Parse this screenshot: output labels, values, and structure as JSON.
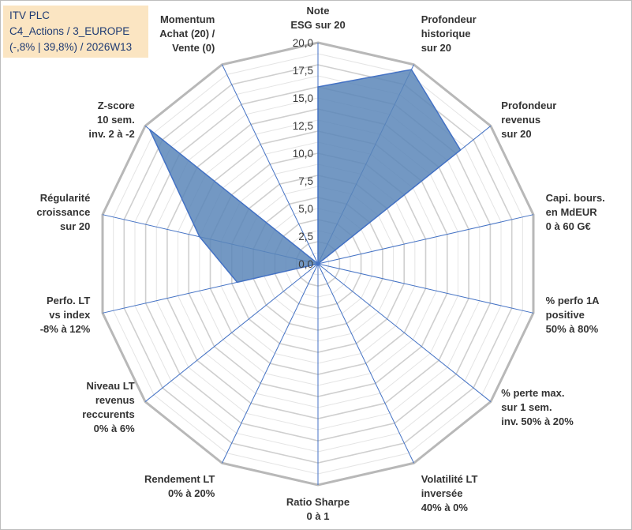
{
  "title_box": {
    "line1": "ITV PLC",
    "line2": "C4_Actions / 3_EUROPE",
    "line3": "(-,8% | 39,8%) / 2026W13"
  },
  "colors": {
    "fill": "#5b86b8",
    "stroke": "#4472c4",
    "grid": "#c8c8c8",
    "spoke": "#4472c4",
    "title_bg": "#fbe5c2",
    "title_text": "#1f3b73"
  },
  "chart_data": {
    "type": "radar",
    "title": "",
    "rmin": 0,
    "rmax": 20,
    "ticks": [
      "0,0",
      "2,5",
      "5,0",
      "7,5",
      "10,0",
      "12,5",
      "15,0",
      "17,5",
      "20,0"
    ],
    "axes": [
      {
        "label": [
          "Note",
          "ESG sur 20"
        ],
        "value": 16
      },
      {
        "label": [
          "Profondeur",
          "historique",
          "sur 20"
        ],
        "value": 19.5
      },
      {
        "label": [
          "Profondeur",
          "revenus",
          "sur 20"
        ],
        "value": 16.5
      },
      {
        "label": [
          "Capi. bours.",
          "en MdEUR",
          "0 à 60 G€"
        ],
        "value": 0
      },
      {
        "label": [
          "% perfo 1A",
          "positive",
          "50% à 80%"
        ],
        "value": 0
      },
      {
        "label": [
          "% perte max.",
          "sur 1 sem.",
          "inv. 50% à 20%"
        ],
        "value": 0
      },
      {
        "label": [
          "Volatilité LT",
          "inversée",
          "40% à 0%"
        ],
        "value": 0
      },
      {
        "label": [
          "Ratio Sharpe",
          "0 à 1"
        ],
        "value": 0
      },
      {
        "label": [
          "Rendement LT",
          "0% à 20%"
        ],
        "value": 0
      },
      {
        "label": [
          "Niveau LT",
          "revenus",
          "reccurents",
          "0% à 6%"
        ],
        "value": 0
      },
      {
        "label": [
          "Perfo. LT",
          "vs index",
          "-8% à 12%"
        ],
        "value": 7.5
      },
      {
        "label": [
          "Régularité",
          "croissance",
          "sur 20"
        ],
        "value": 11
      },
      {
        "label": [
          "Z-score",
          "10 sem.",
          "inv. 2 à -2"
        ],
        "value": 19.5
      },
      {
        "label": [
          "Momentum",
          "Achat (20) /",
          "Vente (0)"
        ],
        "value": 0
      }
    ]
  }
}
